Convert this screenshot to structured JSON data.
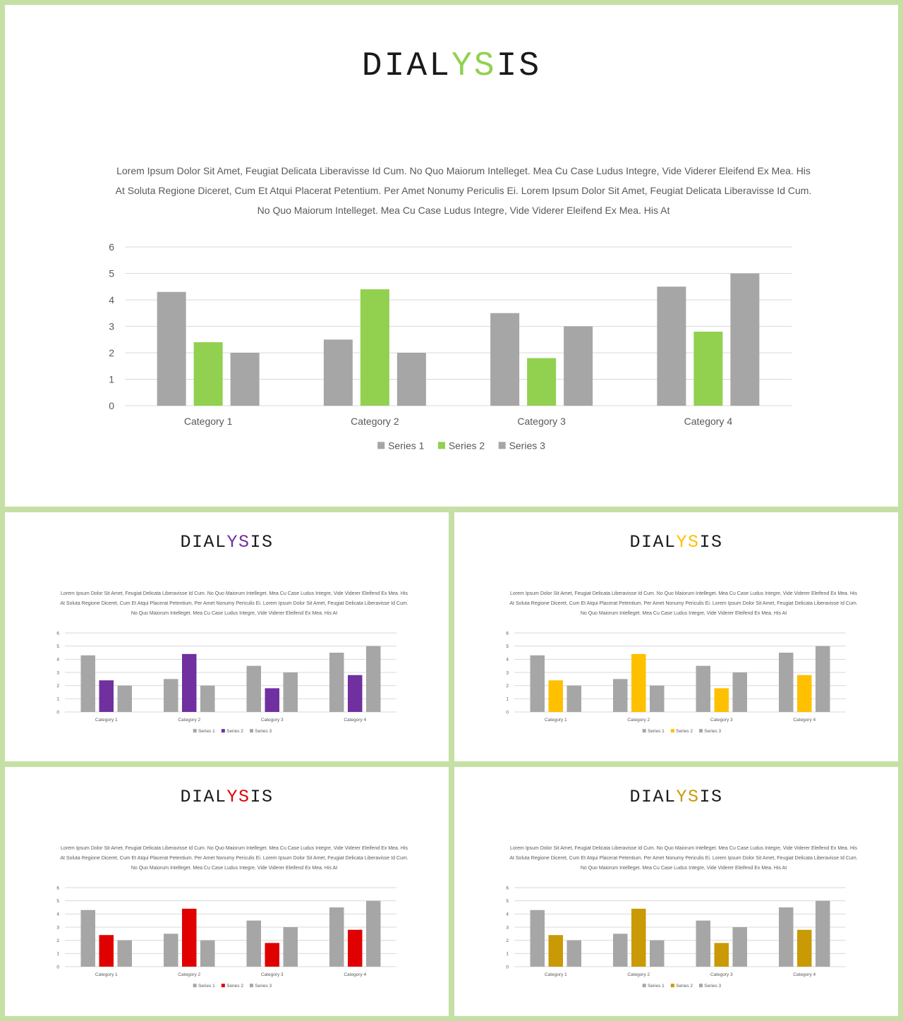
{
  "colors": {
    "background": "#c5e0a5",
    "bar_gray": "#a6a6a6",
    "grid": "#d9d9d9",
    "axis_text": "#595959"
  },
  "slides": [
    {
      "title_pre": "DIAL",
      "title_accent": "YS",
      "title_post": "IS",
      "accent_color": "#92d050",
      "paragraph": "Lorem Ipsum Dolor Sit Amet, Feugiat Delicata Liberavisse Id Cum. No Quo Maiorum Intelleget. Mea Cu Case Ludus Integre, Vide Viderer Eleifend Ex Mea. His At Soluta Regione Diceret, Cum Et Atqui Placerat Petentium. Per Amet Nonumy Periculis Ei. Lorem Ipsum Dolor Sit Amet, Feugiat Delicata Liberavisse Id Cum. No Quo Maiorum Intelleget. Mea Cu Case Ludus Integre, Vide Viderer Eleifend Ex Mea. His At"
    },
    {
      "title_pre": "DIAL",
      "title_accent": "YS",
      "title_post": "IS",
      "accent_color": "#7030a0",
      "paragraph": "Lorem Ipsum Dolor Sit Amet, Feugiat Delicata Liberavisse Id Cum. No Quo Maiorum Intelleget. Mea Cu Case Ludus Integre, Vide Viderer Eleifend Ex Mea. His At Soluta Regione Diceret, Cum Et Atqui Placerat Petentium. Per Amet Nonumy Periculis Ei. Lorem Ipsum Dolor Sit Amet, Feugiat Delicata Liberavisse Id Cum. No Quo Maiorum Intelleget. Mea Cu Case Ludus Integre, Vide Viderer Eleifend Ex Mea. His At"
    },
    {
      "title_pre": "DIAL",
      "title_accent": "YS",
      "title_post": "IS",
      "accent_color": "#ffc000",
      "paragraph": "Lorem Ipsum Dolor Sit Amet, Feugiat Delicata Liberavisse Id Cum. No Quo Maiorum Intelleget. Mea Cu Case Ludus Integre, Vide Viderer Eleifend Ex Mea. His At Soluta Regione Diceret, Cum Et Atqui Placerat Petentium. Per Amet Nonumy Periculis Ei. Lorem Ipsum Dolor Sit Amet, Feugiat Delicata Liberavisse Id Cum. No Quo Maiorum Intelleget. Mea Cu Case Ludus Integre, Vide Viderer Eleifend Ex Mea. His At"
    },
    {
      "title_pre": "DIAL",
      "title_accent": "YS",
      "title_post": "IS",
      "accent_color": "#e00000",
      "paragraph": "Lorem Ipsum Dolor Sit Amet, Feugiat Delicata Liberavisse Id Cum. No Quo Maiorum Intelleget. Mea Cu Case Ludus Integre, Vide Viderer Eleifend Ex Mea. His At Soluta Regione Diceret, Cum Et Atqui Placerat Petentium. Per Amet Nonumy Periculis Ei. Lorem Ipsum Dolor Sit Amet, Feugiat Delicata Liberavisse Id Cum. No Quo Maiorum Intelleget. Mea Cu Case Ludus Integre, Vide Viderer Eleifend Ex Mea. His At"
    },
    {
      "title_pre": "DIAL",
      "title_accent": "YS",
      "title_post": "IS",
      "accent_color": "#c99a06",
      "paragraph": "Lorem Ipsum Dolor Sit Amet, Feugiat Delicata Liberavisse Id Cum. No Quo Maiorum Intelleget. Mea Cu Case Ludus Integre, Vide Viderer Eleifend Ex Mea. His At Soluta Regione Diceret, Cum Et Atqui Placerat Petentium. Per Amet Nonumy Periculis Ei. Lorem Ipsum Dolor Sit Amet, Feugiat Delicata Liberavisse Id Cum. No Quo Maiorum Intelleget. Mea Cu Case Ludus Integre, Vide Viderer Eleifend Ex Mea. His At"
    }
  ],
  "chart_data": {
    "type": "bar",
    "categories": [
      "Category 1",
      "Category 2",
      "Category 3",
      "Category 4"
    ],
    "series": [
      {
        "name": "Series 1",
        "values": [
          4.3,
          2.5,
          3.5,
          4.5
        ]
      },
      {
        "name": "Series 2",
        "values": [
          2.4,
          4.4,
          1.8,
          2.8
        ]
      },
      {
        "name": "Series 3",
        "values": [
          2,
          2,
          3,
          5
        ]
      }
    ],
    "ylim": [
      0,
      6
    ],
    "yticks": [
      "0",
      "1",
      "2",
      "3",
      "4",
      "5",
      "6"
    ],
    "grid": true,
    "legend": "bottom"
  }
}
